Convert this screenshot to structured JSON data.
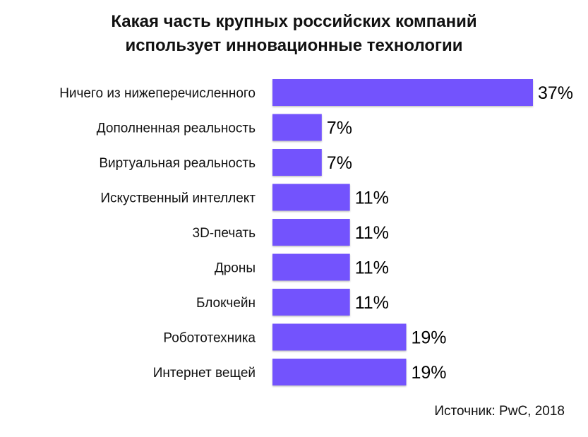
{
  "chart_data": {
    "type": "bar",
    "orientation": "horizontal",
    "title_lines": [
      "Какая часть крупных российских компаний",
      "использует инновационные технологии"
    ],
    "categories": [
      "Ничего из нижеперечисленного",
      "Дополненная реальность",
      "Виртуальная реальность",
      "Искуственный интеллект",
      "3D-печать",
      "Дроны",
      "Блокчейн",
      "Робототехника",
      "Интернет вещей"
    ],
    "values": [
      37,
      7,
      7,
      11,
      11,
      11,
      11,
      19,
      19
    ],
    "value_labels": [
      "37%",
      "7%",
      "7%",
      "11%",
      "11%",
      "11%",
      "11%",
      "19%",
      "19%"
    ],
    "unit": "%",
    "xlim": [
      0,
      37
    ],
    "grid": false,
    "bar_color": "#7352fd",
    "source": "Источник: PwC, 2018"
  }
}
